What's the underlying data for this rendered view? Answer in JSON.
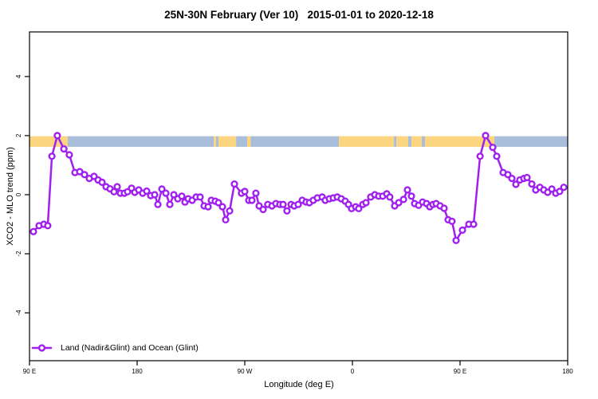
{
  "chart_data": {
    "type": "line",
    "title": "25N-30N February (Ver 10)   2015-01-01 to 2020-12-18",
    "xlabel": "Longitude (deg E)",
    "ylabel": "XCO2 - MLO trend (ppm)",
    "grid": false,
    "xlim": [
      90,
      540
    ],
    "ylim": [
      -5.62,
      5.51
    ],
    "x_ticks": [
      {
        "value": 90,
        "label": "90 E"
      },
      {
        "value": 180,
        "label": "180"
      },
      {
        "value": 270,
        "label": "90 W"
      },
      {
        "value": 360,
        "label": "0"
      },
      {
        "value": 450,
        "label": "90 E"
      },
      {
        "value": 540,
        "label": "180"
      }
    ],
    "y_ticks": [
      {
        "value": -4,
        "label": "-4"
      },
      {
        "value": -2,
        "label": "-2"
      },
      {
        "value": 0,
        "label": "0"
      },
      {
        "value": 2,
        "label": "2"
      },
      {
        "value": 4,
        "label": "4"
      }
    ],
    "colors": {
      "series": "#A020F0",
      "land": "#FBD57F",
      "ocean": "#A9BEDA",
      "axis": "#000000"
    },
    "legend": {
      "position": "bottom-left",
      "entries": [
        {
          "label": "Land (Nadir&Glint) and Ocean (Glint)",
          "color": "#A020F0",
          "marker": "line-open-circle"
        }
      ]
    },
    "land_ocean_band": {
      "description": "land/ocean strip drawn near y=1.8",
      "y_range": [
        1.62,
        1.98
      ],
      "segments": [
        {
          "from": 90,
          "to": 122,
          "type": "land"
        },
        {
          "from": 122,
          "to": 244,
          "type": "ocean"
        },
        {
          "from": 244,
          "to": 246,
          "type": "land"
        },
        {
          "from": 246,
          "to": 248,
          "type": "ocean"
        },
        {
          "from": 248,
          "to": 262.7,
          "type": "land"
        },
        {
          "from": 262.7,
          "to": 272,
          "type": "ocean"
        },
        {
          "from": 272,
          "to": 275,
          "type": "land"
        },
        {
          "from": 275,
          "to": 348.7,
          "type": "ocean"
        },
        {
          "from": 348.7,
          "to": 394.7,
          "type": "land"
        },
        {
          "from": 394.7,
          "to": 396.7,
          "type": "ocean"
        },
        {
          "from": 396.7,
          "to": 406.7,
          "type": "land"
        },
        {
          "from": 406.7,
          "to": 409.3,
          "type": "ocean"
        },
        {
          "from": 409.3,
          "to": 418,
          "type": "land"
        },
        {
          "from": 418,
          "to": 420.7,
          "type": "ocean"
        },
        {
          "from": 420.7,
          "to": 478.7,
          "type": "land"
        },
        {
          "from": 478.7,
          "to": 540,
          "type": "ocean"
        }
      ]
    },
    "series": [
      {
        "name": "Land (Nadir&Glint) and Ocean (Glint)",
        "color": "#A020F0",
        "x": [
          93.3,
          98,
          102,
          105.3,
          108.7,
          113.3,
          118.7,
          123.3,
          128,
          132,
          136,
          140,
          144,
          147.3,
          150.7,
          154,
          157.3,
          160.7,
          163.3,
          166,
          169.3,
          172,
          175.3,
          178,
          181.3,
          184.7,
          188,
          191.3,
          194.7,
          197.3,
          200.7,
          204,
          207.3,
          210.7,
          214,
          217.3,
          220,
          222.7,
          226,
          229.3,
          232.7,
          236,
          239.3,
          242,
          245.3,
          248,
          251.3,
          254,
          257.3,
          261.3,
          267.3,
          270,
          273.3,
          276,
          279.3,
          282,
          285.3,
          289.3,
          292.7,
          296,
          299.3,
          302,
          305.3,
          308.7,
          311.3,
          314.7,
          318,
          321.3,
          324,
          327.3,
          330.7,
          334.7,
          337.3,
          340.7,
          344,
          347.3,
          350.7,
          354,
          356.7,
          359.3,
          362.7,
          365.3,
          368.7,
          371.3,
          375.3,
          378.7,
          382,
          385.3,
          388.7,
          391.3,
          395.3,
          398.7,
          402.7,
          406,
          409.3,
          412,
          415.3,
          418.7,
          422,
          424.7,
          427.3,
          430,
          433.3,
          436.7,
          440,
          443.3,
          446.7,
          452,
          457.3,
          461.3,
          466.7,
          471.3,
          477.3,
          480.7,
          486,
          490,
          493.3,
          496.7,
          500,
          503.3,
          506,
          510,
          513.3,
          516.7,
          520,
          523.3,
          526.7,
          530,
          533.3,
          536.7
        ],
        "y": [
          -1.25,
          -1.05,
          -1.0,
          -1.05,
          1.3,
          2.0,
          1.55,
          1.35,
          0.75,
          0.78,
          0.68,
          0.55,
          0.62,
          0.5,
          0.42,
          0.27,
          0.2,
          0.1,
          0.27,
          0.05,
          0.05,
          0.1,
          0.22,
          0.08,
          0.16,
          0.05,
          0.12,
          -0.03,
          0.0,
          -0.33,
          0.19,
          0.05,
          -0.33,
          0.0,
          -0.14,
          -0.05,
          -0.25,
          -0.14,
          -0.19,
          -0.08,
          -0.08,
          -0.38,
          -0.41,
          -0.19,
          -0.22,
          -0.27,
          -0.41,
          -0.85,
          -0.55,
          0.36,
          0.05,
          0.11,
          -0.19,
          -0.19,
          0.05,
          -0.38,
          -0.5,
          -0.33,
          -0.38,
          -0.3,
          -0.33,
          -0.33,
          -0.55,
          -0.33,
          -0.38,
          -0.33,
          -0.19,
          -0.25,
          -0.27,
          -0.19,
          -0.11,
          -0.08,
          -0.19,
          -0.14,
          -0.11,
          -0.08,
          -0.14,
          -0.22,
          -0.33,
          -0.47,
          -0.41,
          -0.47,
          -0.33,
          -0.27,
          -0.08,
          0.0,
          -0.05,
          -0.05,
          0.03,
          -0.08,
          -0.38,
          -0.27,
          -0.16,
          0.16,
          -0.05,
          -0.3,
          -0.36,
          -0.25,
          -0.3,
          -0.41,
          -0.33,
          -0.3,
          -0.38,
          -0.46,
          -0.85,
          -0.9,
          -1.55,
          -1.2,
          -1.0,
          -1.0,
          1.3,
          2.0,
          1.6,
          1.3,
          0.75,
          0.68,
          0.55,
          0.35,
          0.5,
          0.55,
          0.58,
          0.36,
          0.16,
          0.25,
          0.16,
          0.08,
          0.19,
          0.05,
          0.11,
          0.25
        ]
      }
    ]
  }
}
